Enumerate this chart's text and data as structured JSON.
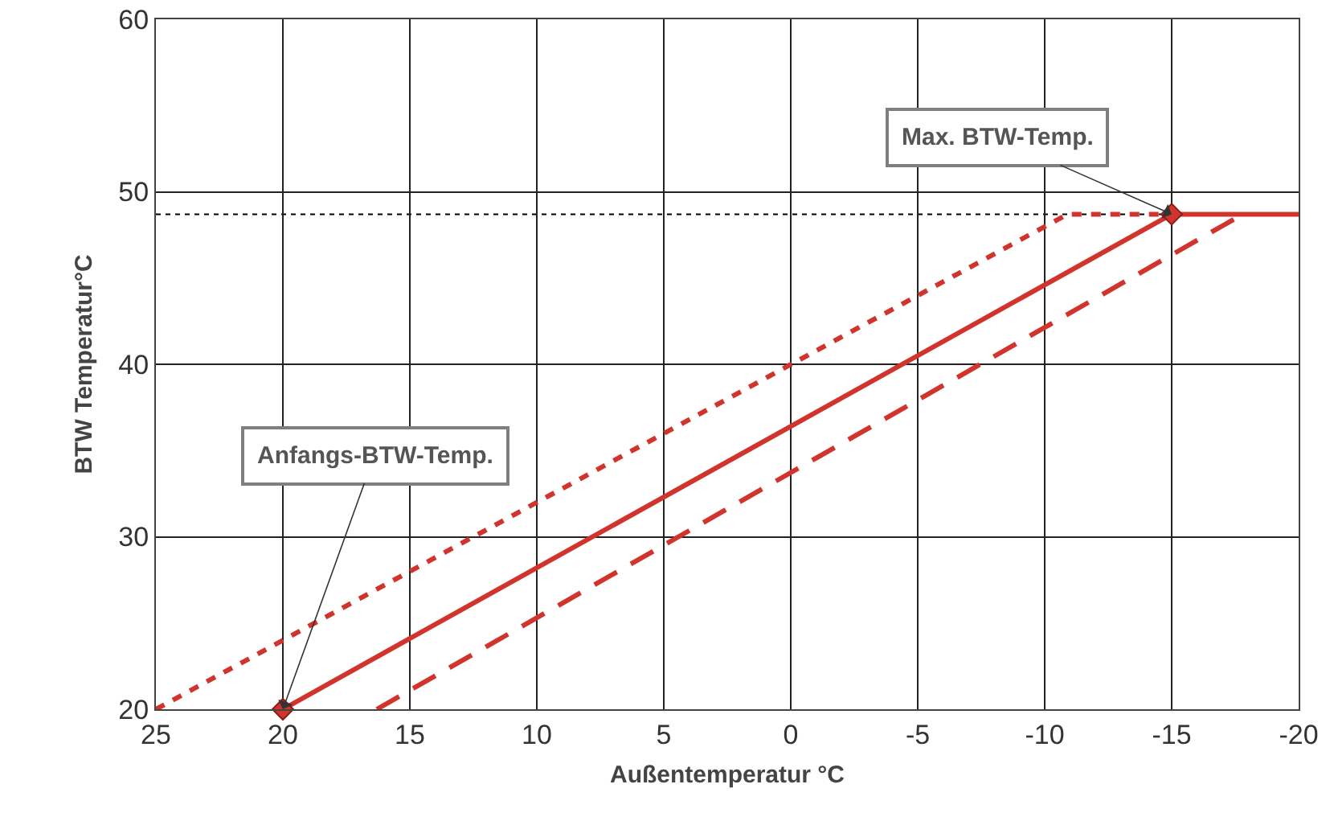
{
  "chart_data": {
    "type": "line",
    "xlabel": "Außentemperatur °C",
    "ylabel": "BTW Temperatur°C",
    "xlim": [
      25,
      -20
    ],
    "xticks": [
      25,
      20,
      15,
      10,
      5,
      0,
      -5,
      -10,
      -15,
      -20
    ],
    "ylim": [
      20,
      60
    ],
    "yticks": [
      20,
      30,
      40,
      50,
      60
    ],
    "grid": true,
    "series": [
      {
        "color": "#d0342c",
        "line_style": "dotted",
        "marker": "none",
        "x": [
          25,
          -10.9,
          -15
        ],
        "values": [
          20,
          48.7,
          48.7
        ]
      },
      {
        "color": "#d0342c",
        "line_style": "dashed",
        "marker": "none",
        "x": [
          16.3,
          -17.8
        ],
        "values": [
          20,
          48.7
        ]
      },
      {
        "color": "#d0342c",
        "line_style": "solid",
        "marker": "none",
        "x": [
          -15,
          -20
        ],
        "values": [
          48.7,
          48.7
        ]
      },
      {
        "color": "#d0342c",
        "line_style": "solid",
        "marker": "diamond",
        "x": [
          20,
          -15
        ],
        "values": [
          20,
          48.7
        ]
      }
    ],
    "ref_lines": [
      {
        "axis": "y",
        "value": 48.7,
        "color": "#000000",
        "line_style": "dotted"
      }
    ],
    "annotations": [
      {
        "text": "Max. BTW-Temp.",
        "x": -15,
        "y": 48.7
      },
      {
        "text": "Anfangs-BTW-Temp.",
        "x": 20,
        "y": 20
      }
    ]
  }
}
